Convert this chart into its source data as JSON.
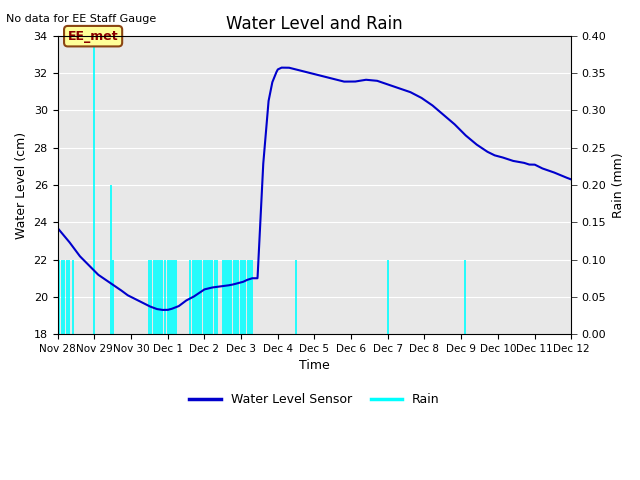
{
  "title": "Water Level and Rain",
  "subtitle": "No data for EE Staff Gauge",
  "xlabel": "Time",
  "ylabel_left": "Water Level (cm)",
  "ylabel_right": "Rain (mm)",
  "annotation_label": "EE_met",
  "annotation_box_color": "#FFFF99",
  "annotation_border_color": "#8B4513",
  "annotation_text_color": "#8B0000",
  "ylim_left": [
    18,
    34
  ],
  "ylim_right": [
    0.0,
    0.4
  ],
  "yticks_left": [
    18,
    20,
    22,
    24,
    26,
    28,
    30,
    32,
    34
  ],
  "yticks_right": [
    0.0,
    0.05,
    0.1,
    0.15,
    0.2,
    0.25,
    0.3,
    0.35,
    0.4
  ],
  "background_color": "#E8E8E8",
  "water_level_color": "#0000CC",
  "rain_color": "#00FFFF",
  "legend_wl_color": "#0000CC",
  "legend_rain_color": "#00FFFF",
  "xlim": [
    0,
    14
  ],
  "xtick_labels": [
    "Nov 28",
    "Nov 29",
    "Nov 30",
    "Dec 1",
    "Dec 2",
    "Dec 3",
    "Dec 4",
    "Dec 5",
    "Dec 6",
    "Dec 7",
    "Dec 8",
    "Dec 9",
    "Dec 10",
    "Dec 11",
    "Dec 12"
  ],
  "xtick_positions": [
    0,
    1,
    2,
    3,
    4,
    5,
    6,
    7,
    8,
    9,
    10,
    11,
    12,
    13,
    14
  ],
  "rain_events": [
    [
      0.05,
      0.1
    ],
    [
      0.12,
      0.1
    ],
    [
      0.18,
      0.1
    ],
    [
      0.25,
      0.1
    ],
    [
      0.32,
      0.1
    ],
    [
      0.42,
      0.1
    ],
    [
      1.0,
      0.4
    ],
    [
      1.45,
      0.2
    ],
    [
      1.52,
      0.1
    ],
    [
      2.5,
      0.1
    ],
    [
      2.56,
      0.1
    ],
    [
      2.62,
      0.1
    ],
    [
      2.68,
      0.1
    ],
    [
      2.74,
      0.1
    ],
    [
      2.8,
      0.1
    ],
    [
      2.86,
      0.1
    ],
    [
      2.92,
      0.1
    ],
    [
      3.0,
      0.1
    ],
    [
      3.06,
      0.1
    ],
    [
      3.12,
      0.1
    ],
    [
      3.18,
      0.1
    ],
    [
      3.24,
      0.1
    ],
    [
      3.62,
      0.1
    ],
    [
      3.68,
      0.1
    ],
    [
      3.74,
      0.1
    ],
    [
      3.8,
      0.1
    ],
    [
      3.86,
      0.1
    ],
    [
      3.92,
      0.1
    ],
    [
      3.98,
      0.1
    ],
    [
      4.04,
      0.1
    ],
    [
      4.1,
      0.1
    ],
    [
      4.16,
      0.1
    ],
    [
      4.22,
      0.1
    ],
    [
      4.28,
      0.1
    ],
    [
      4.34,
      0.1
    ],
    [
      4.5,
      0.1
    ],
    [
      4.56,
      0.1
    ],
    [
      4.62,
      0.1
    ],
    [
      4.68,
      0.1
    ],
    [
      4.74,
      0.1
    ],
    [
      4.8,
      0.1
    ],
    [
      4.86,
      0.1
    ],
    [
      4.92,
      0.1
    ],
    [
      5.0,
      0.1
    ],
    [
      5.06,
      0.1
    ],
    [
      5.12,
      0.1
    ],
    [
      5.18,
      0.1
    ],
    [
      5.24,
      0.1
    ],
    [
      5.3,
      0.1
    ],
    [
      6.5,
      0.1
    ],
    [
      9.0,
      0.1
    ],
    [
      11.1,
      0.1
    ]
  ],
  "wl_key_x": [
    0,
    0.3,
    0.6,
    0.9,
    1.1,
    1.4,
    1.7,
    1.9,
    2.1,
    2.3,
    2.5,
    2.7,
    2.85,
    3.0,
    3.1,
    3.3,
    3.5,
    3.7,
    3.85,
    4.0,
    4.2,
    4.4,
    4.6,
    4.75,
    4.85,
    4.95,
    5.05,
    5.15,
    5.3,
    5.45,
    5.6,
    5.75,
    5.85,
    5.95,
    6.0,
    6.1,
    6.3,
    6.5,
    6.7,
    6.9,
    7.2,
    7.5,
    7.8,
    8.1,
    8.4,
    8.7,
    9.0,
    9.3,
    9.6,
    9.9,
    10.2,
    10.5,
    10.8,
    11.1,
    11.4,
    11.7,
    11.9,
    12.1,
    12.4,
    12.7,
    12.85,
    13.0,
    13.2,
    13.5,
    13.8,
    14.0
  ],
  "wl_key_y": [
    23.7,
    23.0,
    22.2,
    21.6,
    21.2,
    20.8,
    20.4,
    20.1,
    19.9,
    19.7,
    19.5,
    19.35,
    19.3,
    19.3,
    19.35,
    19.5,
    19.8,
    20.0,
    20.2,
    20.4,
    20.5,
    20.55,
    20.6,
    20.65,
    20.7,
    20.75,
    20.8,
    20.9,
    21.0,
    21.0,
    27.0,
    30.5,
    31.5,
    32.0,
    32.2,
    32.3,
    32.3,
    32.2,
    32.1,
    32.0,
    31.85,
    31.7,
    31.55,
    31.55,
    31.65,
    31.6,
    31.4,
    31.2,
    31.0,
    30.7,
    30.3,
    29.8,
    29.3,
    28.7,
    28.2,
    27.8,
    27.6,
    27.5,
    27.3,
    27.2,
    27.1,
    27.1,
    26.9,
    26.7,
    26.45,
    26.3
  ]
}
